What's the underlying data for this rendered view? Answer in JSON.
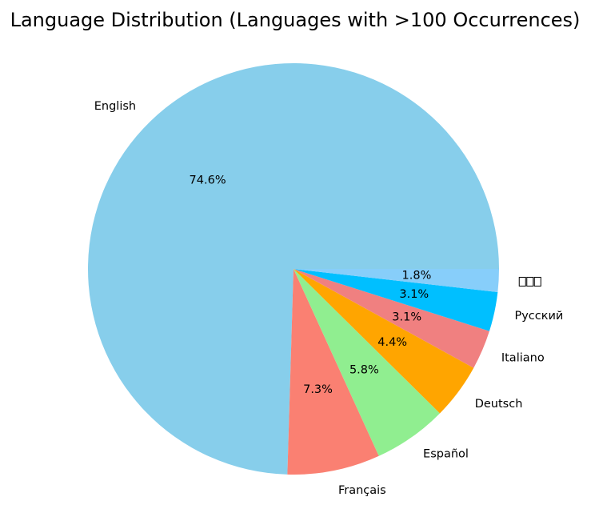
{
  "chart_data": {
    "type": "pie",
    "title": "Language Distribution (Languages with >100 Occurrences)",
    "start_angle_deg": 0,
    "direction": "counterclockwise",
    "slices": [
      {
        "label": "English",
        "value": 74.6,
        "pct_label": "74.6%",
        "color": "#87CEEB"
      },
      {
        "label": "Français",
        "value": 7.3,
        "pct_label": "7.3%",
        "color": "#FA8072"
      },
      {
        "label": "Español",
        "value": 5.8,
        "pct_label": "5.8%",
        "color": "#90EE90"
      },
      {
        "label": "Deutsch",
        "value": 4.4,
        "pct_label": "4.4%",
        "color": "#FFA500"
      },
      {
        "label": "Italiano",
        "value": 3.1,
        "pct_label": "3.1%",
        "color": "#F08080"
      },
      {
        "label": "Русский",
        "value": 3.1,
        "pct_label": "3.1%",
        "color": "#00BFFF"
      },
      {
        "label": "",
        "value": 1.8,
        "pct_label": "1.8%",
        "color": "#87CEFA",
        "label_glyphs": "missing-glyph-boxes"
      }
    ]
  }
}
